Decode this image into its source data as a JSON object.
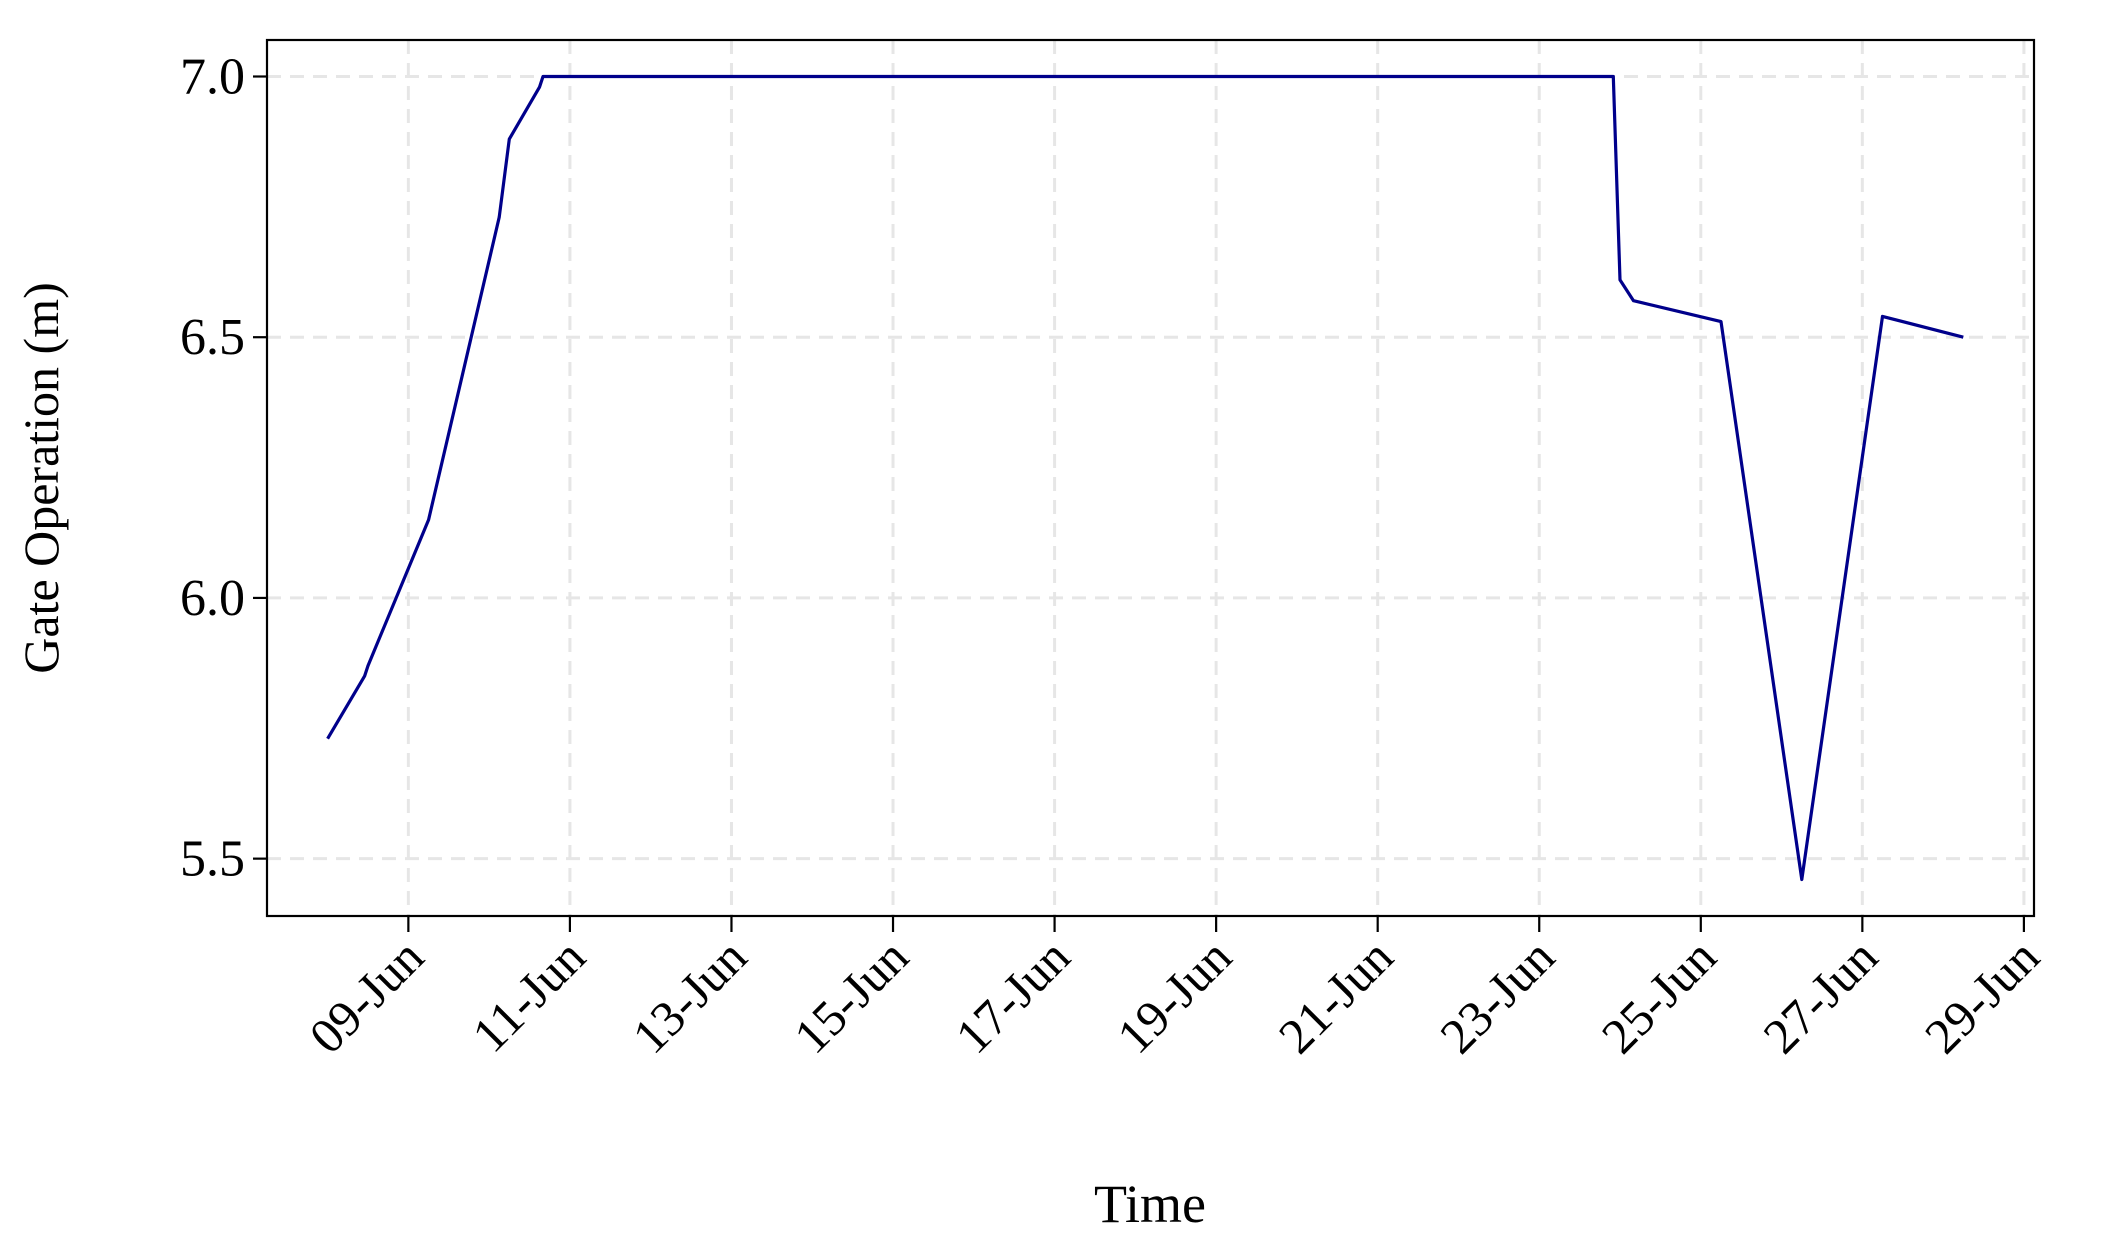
{
  "chart_data": {
    "type": "line",
    "title": "",
    "xlabel": "Time",
    "ylabel": "Gate Operation (m)",
    "x_type": "date",
    "xlim": [
      "2023-06-07T06:00",
      "2023-06-29T03:00"
    ],
    "ylim": [
      5.39,
      7.07
    ],
    "x_ticks": [
      {
        "date": "2023-06-09",
        "label": "09-Jun"
      },
      {
        "date": "2023-06-11",
        "label": "11-Jun"
      },
      {
        "date": "2023-06-13",
        "label": "13-Jun"
      },
      {
        "date": "2023-06-15",
        "label": "15-Jun"
      },
      {
        "date": "2023-06-17",
        "label": "17-Jun"
      },
      {
        "date": "2023-06-19",
        "label": "19-Jun"
      },
      {
        "date": "2023-06-21",
        "label": "21-Jun"
      },
      {
        "date": "2023-06-23",
        "label": "23-Jun"
      },
      {
        "date": "2023-06-25",
        "label": "25-Jun"
      },
      {
        "date": "2023-06-27",
        "label": "27-Jun"
      },
      {
        "date": "2023-06-29",
        "label": "29-Jun"
      }
    ],
    "y_ticks": [
      {
        "value": 5.5,
        "label": "5.5"
      },
      {
        "value": 6.0,
        "label": "6.0"
      },
      {
        "value": 6.5,
        "label": "6.5"
      },
      {
        "value": 7.0,
        "label": "7.0"
      }
    ],
    "grid": true,
    "colors": {
      "line": "#00008b",
      "grid": "#e6e6e6",
      "axis": "#000000"
    },
    "series": [
      {
        "values": [
          {
            "x": "2023-06-08T00:00",
            "y": 5.73
          },
          {
            "x": "2023-06-08T11:00",
            "y": 5.85
          },
          {
            "x": "2023-06-08T12:00",
            "y": 5.87
          },
          {
            "x": "2023-06-09T06:00",
            "y": 6.15
          },
          {
            "x": "2023-06-10T03:00",
            "y": 6.73
          },
          {
            "x": "2023-06-10T06:00",
            "y": 6.88
          },
          {
            "x": "2023-06-10T15:00",
            "y": 6.98
          },
          {
            "x": "2023-06-10T16:00",
            "y": 7.0
          },
          {
            "x": "2023-06-23T22:00",
            "y": 7.0
          },
          {
            "x": "2023-06-24T00:00",
            "y": 6.61
          },
          {
            "x": "2023-06-24T04:00",
            "y": 6.57
          },
          {
            "x": "2023-06-25T06:00",
            "y": 6.53
          },
          {
            "x": "2023-06-26T06:00",
            "y": 5.46
          },
          {
            "x": "2023-06-27T06:00",
            "y": 6.54
          },
          {
            "x": "2023-06-28T06:00",
            "y": 6.5
          }
        ]
      }
    ]
  }
}
